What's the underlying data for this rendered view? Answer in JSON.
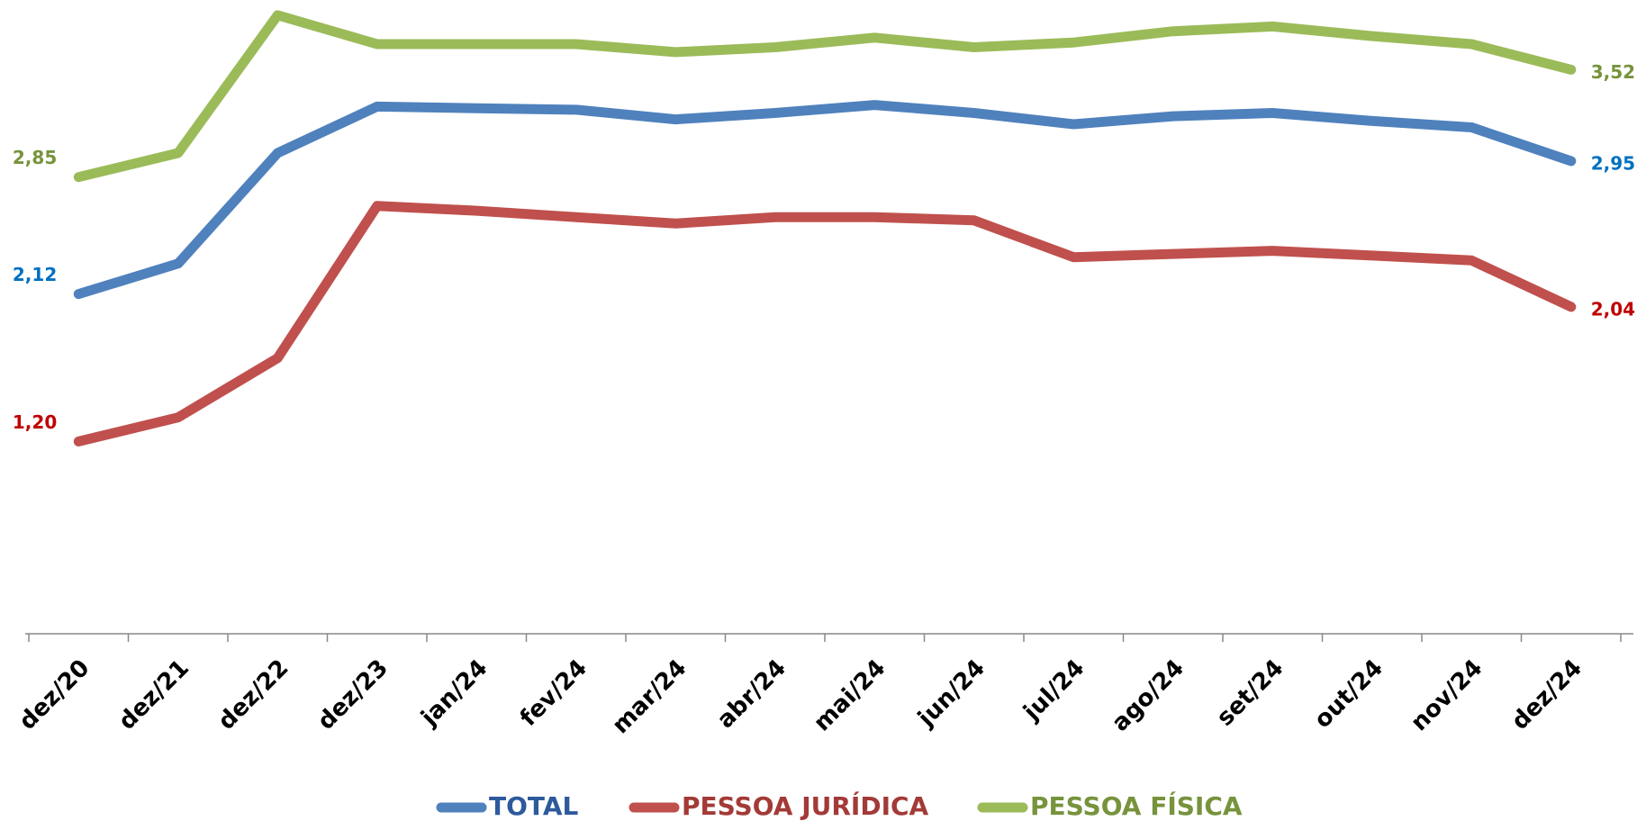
{
  "chart_data": {
    "type": "line",
    "categories": [
      "dez/20",
      "dez/21",
      "dez/22",
      "dez/23",
      "jan/24",
      "fev/24",
      "mar/24",
      "abr/24",
      "mai/24",
      "jun/24",
      "jul/24",
      "ago/24",
      "set/24",
      "out/24",
      "nov/24",
      "dez/24"
    ],
    "ylim": [
      0,
      4
    ],
    "legend": "bottom",
    "series": [
      {
        "name": "TOTAL",
        "color": "#4f81bd",
        "label_color": "#0070c0",
        "legend_color": "#2e5a9c",
        "values": [
          2.12,
          2.31,
          3.0,
          3.29,
          3.28,
          3.27,
          3.21,
          3.25,
          3.3,
          3.25,
          3.18,
          3.23,
          3.25,
          3.2,
          3.16,
          2.95
        ],
        "value_labels": [
          "2,12",
          null,
          null,
          null,
          null,
          null,
          null,
          null,
          null,
          null,
          null,
          null,
          null,
          null,
          null,
          "2,95"
        ]
      },
      {
        "name": "PESSOA JURÍDICA",
        "color": "#c0504d",
        "label_color": "#c00000",
        "legend_color": "#a33a37",
        "values": [
          1.2,
          1.35,
          1.72,
          2.67,
          2.64,
          2.6,
          2.56,
          2.6,
          2.6,
          2.58,
          2.35,
          2.37,
          2.39,
          2.36,
          2.33,
          2.04
        ],
        "value_labels": [
          "1,20",
          null,
          null,
          null,
          null,
          null,
          null,
          null,
          null,
          null,
          null,
          null,
          null,
          null,
          null,
          "2,04"
        ]
      },
      {
        "name": "PESSOA FÍSICA",
        "color": "#9bbb59",
        "label_color": "#77933c",
        "legend_color": "#77933c",
        "values": [
          2.85,
          3.0,
          3.86,
          3.68,
          3.68,
          3.68,
          3.63,
          3.66,
          3.72,
          3.66,
          3.69,
          3.76,
          3.79,
          3.73,
          3.68,
          3.52
        ],
        "value_labels": [
          "2,85",
          null,
          null,
          null,
          null,
          null,
          null,
          null,
          null,
          null,
          null,
          null,
          null,
          null,
          null,
          "3,52"
        ]
      }
    ]
  }
}
